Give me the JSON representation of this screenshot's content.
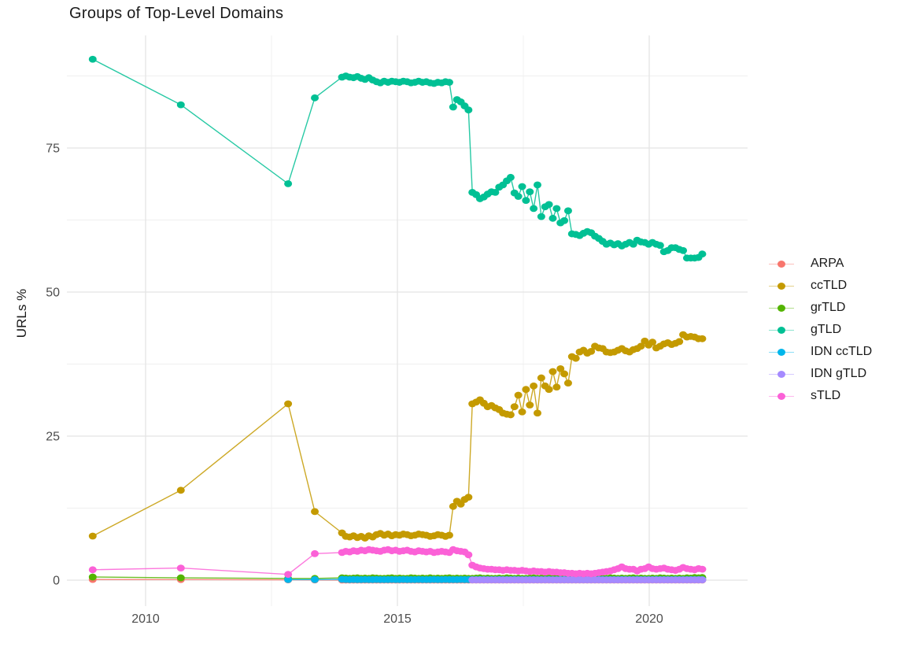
{
  "title": "Groups of Top-Level Domains",
  "y_axis_title": "URLs %",
  "legend": {
    "items": [
      {
        "label": "ARPA",
        "color": "#F8766D"
      },
      {
        "label": "ccTLD",
        "color": "#C49A00"
      },
      {
        "label": "grTLD",
        "color": "#53B400"
      },
      {
        "label": "gTLD",
        "color": "#00C094"
      },
      {
        "label": "IDN ccTLD",
        "color": "#00B6EB"
      },
      {
        "label": "IDN gTLD",
        "color": "#A58AFF"
      },
      {
        "label": "sTLD",
        "color": "#FB61D7"
      }
    ]
  },
  "chart_data": {
    "type": "line",
    "title": "Groups of Top-Level Domains",
    "xlabel": "",
    "ylabel": "URLs %",
    "x_ticks": [
      2010,
      2015,
      2020
    ],
    "x_minor_ticks": [
      2012.5,
      2017.5
    ],
    "y_ticks": [
      0,
      25,
      50,
      75
    ],
    "y_minor_ticks": [
      12.5,
      37.5,
      62.5,
      87.5
    ],
    "xlim": [
      2008.45,
      2021.95
    ],
    "ylim": [
      -4.5,
      94.5
    ],
    "grid": true,
    "legend_position": "right",
    "x_sparse": [
      2008.95,
      2010.7,
      2012.83,
      2013.36
    ],
    "x_dense_start": 2013.9,
    "x_dense_step": 0.0761,
    "x_dense_count": 95,
    "series": [
      {
        "name": "ARPA",
        "color": "#F8766D",
        "sparse": [
          0.12,
          0.1,
          0.05,
          0.03
        ],
        "dense": [
          0.02,
          0.02,
          0.02,
          0.02,
          0.02,
          0.02,
          0.02,
          0.02,
          0.02,
          0.02,
          0.02,
          0.02,
          0.02,
          0.02,
          0.02,
          0.02,
          0.02,
          0.02,
          0.02,
          0.02,
          0.02,
          0.02,
          0.02,
          0.02,
          0.02,
          0.02,
          0.02,
          0.02,
          0.02,
          0.02,
          0.02,
          0.02,
          0.02,
          0.02,
          0.02,
          0.02,
          0.02,
          0.02,
          0.02,
          0.02,
          0.02,
          0.02,
          0.02,
          0.02,
          0.02,
          0.02,
          0.02,
          0.02,
          0.02,
          0.02,
          0.02,
          0.02,
          0.02,
          0.02,
          0.02,
          0.02,
          0.02,
          0.02,
          0.02,
          0.02,
          0.02,
          0.02,
          0.02,
          0.02,
          0.02,
          0.02,
          0.02,
          0.02,
          0.02,
          0.02,
          0.02,
          0.02,
          0.02,
          0.02,
          0.02,
          0.02,
          0.02,
          0.02,
          0.02,
          0.02,
          0.02,
          0.02,
          0.02,
          0.02,
          0.02,
          0.02,
          0.02,
          0.02,
          0.02,
          0.02,
          0.02,
          0.02,
          0.02,
          0.02,
          0.02
        ]
      },
      {
        "name": "ccTLD",
        "color": "#C49A00",
        "sparse": [
          7.65,
          15.6,
          30.6,
          11.9
        ],
        "dense": [
          8.2,
          7.6,
          7.5,
          7.7,
          7.4,
          7.6,
          7.3,
          7.7,
          7.5,
          7.9,
          8.1,
          7.8,
          8.0,
          7.7,
          7.9,
          7.8,
          8.0,
          7.9,
          7.7,
          7.8,
          8.0,
          7.9,
          7.8,
          7.6,
          7.7,
          7.9,
          7.8,
          7.6,
          7.8,
          12.8,
          13.7,
          13.2,
          14.0,
          14.4,
          30.6,
          30.9,
          31.3,
          30.7,
          30.1,
          30.3,
          29.9,
          29.6,
          29.0,
          28.8,
          28.7,
          30.1,
          32.1,
          29.2,
          33.1,
          30.4,
          33.7,
          29.0,
          35.1,
          33.7,
          33.1,
          36.2,
          33.5,
          36.7,
          35.8,
          34.2,
          38.8,
          38.5,
          39.6,
          39.9,
          39.4,
          39.7,
          40.6,
          40.3,
          40.2,
          39.6,
          39.5,
          39.6,
          39.9,
          40.2,
          39.8,
          39.6,
          40.0,
          40.2,
          40.6,
          41.5,
          40.8,
          41.3,
          40.3,
          40.6,
          41.0,
          41.2,
          40.9,
          41.1,
          41.4,
          42.6,
          42.2,
          42.3,
          42.2,
          41.9,
          41.9
        ]
      },
      {
        "name": "grTLD",
        "color": "#53B400",
        "sparse": [
          0.55,
          0.4,
          0.3,
          0.3
        ],
        "dense": [
          0.4,
          0.35,
          0.3,
          0.35,
          0.4,
          0.3,
          0.35,
          0.3,
          0.4,
          0.35,
          0.3,
          0.3,
          0.35,
          0.4,
          0.3,
          0.35,
          0.3,
          0.3,
          0.4,
          0.35,
          0.3,
          0.35,
          0.3,
          0.4,
          0.3,
          0.35,
          0.3,
          0.35,
          0.4,
          0.3,
          0.35,
          0.3,
          0.35,
          0.3,
          0.3,
          0.35,
          0.4,
          0.3,
          0.35,
          0.3,
          0.3,
          0.35,
          0.3,
          0.4,
          0.35,
          0.3,
          0.35,
          0.3,
          0.3,
          0.35,
          0.4,
          0.3,
          0.35,
          0.3,
          0.35,
          0.3,
          0.4,
          0.35,
          0.3,
          0.35,
          0.3,
          0.3,
          0.35,
          0.4,
          0.3,
          0.35,
          0.3,
          0.3,
          0.35,
          0.3,
          0.4,
          0.35,
          0.3,
          0.35,
          0.3,
          0.35,
          0.4,
          0.3,
          0.35,
          0.3,
          0.3,
          0.35,
          0.3,
          0.4,
          0.35,
          0.3,
          0.35,
          0.3,
          0.35,
          0.3,
          0.4,
          0.35,
          0.45,
          0.4,
          0.45
        ]
      },
      {
        "name": "gTLD",
        "color": "#00C094",
        "sparse": [
          90.4,
          82.5,
          68.8,
          83.7
        ],
        "dense": [
          87.3,
          87.5,
          87.3,
          87.2,
          87.4,
          87.1,
          86.9,
          87.2,
          86.8,
          86.5,
          86.3,
          86.6,
          86.4,
          86.6,
          86.5,
          86.4,
          86.6,
          86.5,
          86.3,
          86.4,
          86.6,
          86.4,
          86.5,
          86.3,
          86.2,
          86.4,
          86.3,
          86.5,
          86.4,
          82.1,
          83.4,
          83.0,
          82.3,
          81.6,
          67.3,
          66.9,
          66.2,
          66.5,
          67.0,
          67.4,
          67.3,
          68.2,
          68.6,
          69.3,
          69.9,
          67.2,
          66.6,
          68.3,
          65.9,
          67.4,
          64.5,
          68.6,
          63.1,
          64.8,
          65.2,
          62.8,
          64.5,
          62.0,
          62.4,
          64.1,
          60.1,
          60.0,
          59.8,
          60.2,
          60.5,
          60.3,
          59.7,
          59.3,
          58.8,
          58.3,
          58.5,
          58.2,
          58.4,
          58.0,
          58.3,
          58.6,
          58.3,
          59.0,
          58.7,
          58.6,
          58.3,
          58.6,
          58.3,
          58.1,
          57.0,
          57.2,
          57.7,
          57.7,
          57.4,
          57.2,
          55.9,
          55.9,
          55.9,
          56.0,
          56.6
        ]
      },
      {
        "name": "IDN ccTLD",
        "color": "#00B6EB",
        "sparse": [
          null,
          null,
          0.1,
          0.1
        ],
        "dense": [
          0.15,
          0.12,
          0.1,
          0.12,
          0.1,
          0.1,
          0.12,
          0.1,
          0.1,
          0.12,
          0.1,
          0.1,
          0.1,
          0.12,
          0.1,
          0.1,
          0.12,
          0.1,
          0.1,
          0.1,
          0.12,
          0.1,
          0.1,
          0.1,
          0.12,
          0.1,
          0.1,
          0.12,
          0.1,
          0.1,
          0.1,
          0.12,
          0.1,
          0.1,
          0.1,
          0.1,
          0.12,
          0.1,
          0.1,
          0.1,
          0.1,
          0.12,
          0.1,
          0.1,
          0.1,
          0.12,
          0.1,
          0.1,
          0.1,
          0.1,
          0.12,
          0.1,
          0.1,
          0.1,
          0.12,
          0.1,
          0.1,
          0.1,
          0.1,
          0.12,
          0.1,
          0.1,
          0.1,
          0.12,
          0.1,
          0.1,
          0.1,
          0.1,
          0.12,
          0.1,
          0.1,
          0.1,
          0.1,
          0.12,
          0.1,
          0.1,
          0.1,
          0.12,
          0.1,
          0.1,
          0.1,
          0.1,
          0.12,
          0.1,
          0.1,
          0.1,
          0.1,
          0.12,
          0.1,
          0.1,
          0.1,
          0.12,
          0.1,
          0.1,
          0.1
        ]
      },
      {
        "name": "IDN gTLD",
        "color": "#A58AFF",
        "sparse": [
          null,
          null,
          null,
          null
        ],
        "dense": [
          null,
          null,
          null,
          null,
          null,
          null,
          null,
          null,
          null,
          null,
          null,
          null,
          null,
          null,
          null,
          null,
          null,
          null,
          null,
          null,
          null,
          null,
          null,
          null,
          null,
          null,
          null,
          null,
          null,
          null,
          null,
          null,
          null,
          null,
          0.05,
          0.05,
          0.05,
          0.05,
          0.05,
          0.05,
          0.05,
          0.05,
          0.05,
          0.05,
          0.05,
          0.05,
          0.05,
          0.05,
          0.05,
          0.05,
          0.05,
          0.05,
          0.05,
          0.05,
          0.05,
          0.05,
          0.05,
          0.05,
          0.05,
          0.05,
          0.05,
          0.05,
          0.05,
          0.05,
          0.05,
          0.05,
          0.05,
          0.05,
          0.05,
          0.05,
          0.05,
          0.05,
          0.05,
          0.05,
          0.05,
          0.05,
          0.05,
          0.05,
          0.05,
          0.05,
          0.05,
          0.05,
          0.05,
          0.05,
          0.05,
          0.05,
          0.05,
          0.05,
          0.05,
          0.05,
          0.05,
          0.05,
          0.05,
          0.05,
          0.05
        ]
      },
      {
        "name": "sTLD",
        "color": "#FB61D7",
        "sparse": [
          1.8,
          2.1,
          1.0,
          4.6
        ],
        "dense": [
          4.8,
          5.0,
          4.9,
          5.1,
          5.0,
          5.2,
          5.1,
          5.3,
          5.2,
          5.1,
          5.0,
          5.2,
          5.3,
          5.1,
          5.2,
          5.0,
          5.1,
          5.2,
          5.0,
          4.9,
          5.1,
          5.0,
          4.9,
          5.0,
          4.8,
          4.9,
          5.0,
          4.9,
          4.8,
          5.3,
          5.1,
          5.0,
          4.9,
          4.4,
          2.6,
          2.3,
          2.1,
          2.0,
          1.9,
          1.9,
          1.8,
          1.8,
          1.7,
          1.8,
          1.7,
          1.7,
          1.6,
          1.7,
          1.6,
          1.5,
          1.6,
          1.5,
          1.5,
          1.4,
          1.5,
          1.4,
          1.4,
          1.3,
          1.3,
          1.2,
          1.2,
          1.1,
          1.2,
          1.1,
          1.2,
          1.1,
          1.2,
          1.3,
          1.4,
          1.5,
          1.6,
          1.8,
          2.0,
          2.3,
          2.0,
          1.9,
          1.9,
          1.6,
          1.9,
          2.0,
          2.3,
          2.0,
          1.9,
          2.0,
          2.1,
          1.9,
          1.8,
          1.7,
          1.9,
          2.2,
          2.0,
          1.9,
          1.8,
          2.0,
          1.9
        ]
      }
    ]
  }
}
